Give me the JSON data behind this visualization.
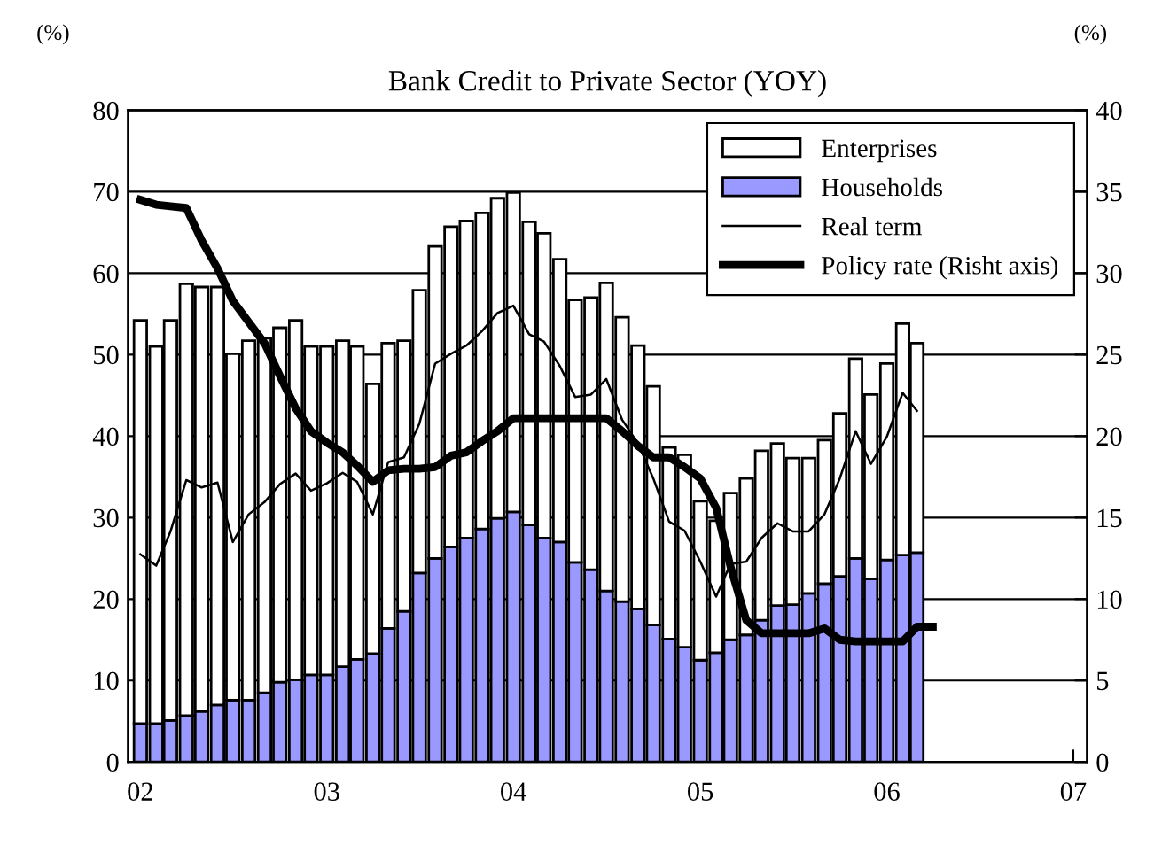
{
  "chart_data": {
    "type": "bar",
    "title": "Bank Credit to Private Sector (YOY)",
    "ylabel": "(%)",
    "y2label": "(%)",
    "stacked": true,
    "x": [
      "2002-01",
      "2002-02",
      "2002-03",
      "2002-04",
      "2002-05",
      "2002-06",
      "2002-07",
      "2002-08",
      "2002-09",
      "2002-10",
      "2002-11",
      "2002-12",
      "2003-01",
      "2003-02",
      "2003-03",
      "2003-04",
      "2003-05",
      "2003-06",
      "2003-07",
      "2003-08",
      "2003-09",
      "2003-10",
      "2003-11",
      "2003-12",
      "2004-01",
      "2004-02",
      "2004-03",
      "2004-04",
      "2004-05",
      "2004-06",
      "2004-07",
      "2004-08",
      "2004-09",
      "2004-10",
      "2004-11",
      "2004-12",
      "2005-01",
      "2005-02",
      "2005-03",
      "2005-04",
      "2005-05",
      "2005-06",
      "2005-07",
      "2005-08",
      "2005-09",
      "2005-10",
      "2005-11",
      "2005-12",
      "2006-01",
      "2006-02",
      "2006-03"
    ],
    "series": [
      {
        "name": "Households",
        "color": "#9999ff",
        "values": [
          4.7,
          4.7,
          5.1,
          5.7,
          6.2,
          7.0,
          7.6,
          7.6,
          8.5,
          9.8,
          10.1,
          10.7,
          10.7,
          11.7,
          12.6,
          13.3,
          16.4,
          18.5,
          23.2,
          25.0,
          26.4,
          27.5,
          28.6,
          29.9,
          30.7,
          29.1,
          27.5,
          27.0,
          24.5,
          23.6,
          21.0,
          19.7,
          18.8,
          16.8,
          15.1,
          14.1,
          12.5,
          13.4,
          15.0,
          15.6,
          17.4,
          19.2,
          19.3,
          20.7,
          21.9,
          22.8,
          25.0,
          22.5,
          24.8,
          25.4,
          25.7
        ]
      },
      {
        "name": "Enterprises",
        "color": "#ffffff",
        "values": [
          49.5,
          46.3,
          49.1,
          53.0,
          52.1,
          51.3,
          42.5,
          44.1,
          43.5,
          43.5,
          44.1,
          40.3,
          40.3,
          40.0,
          38.4,
          33.1,
          35.0,
          33.2,
          34.7,
          38.3,
          39.3,
          38.9,
          38.8,
          39.3,
          39.2,
          37.2,
          37.4,
          34.7,
          32.2,
          33.4,
          37.8,
          34.9,
          32.3,
          29.3,
          23.5,
          23.6,
          19.5,
          16.2,
          18.0,
          19.2,
          20.8,
          19.9,
          18.0,
          16.6,
          17.6,
          20.0,
          24.5,
          22.6,
          24.1,
          28.4,
          25.7
        ]
      },
      {
        "name": "Real term",
        "type": "line",
        "color": "#000000",
        "values": [
          25.5,
          24.1,
          28.3,
          34.6,
          33.7,
          34.3,
          27.0,
          30.4,
          31.9,
          34.1,
          35.4,
          33.3,
          34.2,
          35.5,
          34.4,
          30.4,
          36.8,
          37.4,
          41.5,
          48.9,
          50.1,
          51.1,
          52.9,
          55.1,
          56.0,
          52.5,
          51.6,
          48.6,
          44.8,
          45.1,
          47.0,
          42.0,
          39.1,
          34.8,
          29.5,
          28.4,
          24.6,
          20.3,
          24.3,
          24.6,
          27.5,
          29.3,
          28.3,
          28.3,
          30.4,
          34.8,
          40.6,
          36.6,
          39.9,
          45.3,
          43.1
        ]
      },
      {
        "name": "Policy rate (Risht axis)",
        "type": "line",
        "axis": "y2",
        "color": "#000000",
        "x": [
          "2002-01",
          "2002-02",
          "2002-03",
          "2002-04",
          "2002-05",
          "2002-06",
          "2002-07",
          "2002-08",
          "2002-09",
          "2002-10",
          "2002-11",
          "2002-12",
          "2003-01",
          "2003-02",
          "2003-03",
          "2003-04",
          "2003-05",
          "2003-06",
          "2003-07",
          "2003-08",
          "2003-09",
          "2003-10",
          "2003-11",
          "2003-12",
          "2004-01",
          "2004-02",
          "2004-03",
          "2004-04",
          "2004-05",
          "2004-06",
          "2004-07",
          "2004-08",
          "2004-09",
          "2004-10",
          "2004-11",
          "2004-12",
          "2005-01",
          "2005-02",
          "2005-03",
          "2005-04",
          "2005-05",
          "2005-06",
          "2005-07",
          "2005-08",
          "2005-09",
          "2005-10",
          "2005-11",
          "2005-12",
          "2006-01",
          "2006-02",
          "2006-03",
          "2006-04"
        ],
        "values": [
          34.5,
          34.2,
          34.1,
          34.0,
          32.0,
          30.3,
          28.3,
          27.0,
          25.7,
          23.7,
          21.7,
          20.3,
          19.6,
          19.0,
          18.2,
          17.2,
          17.9,
          18.0,
          18.0,
          18.1,
          18.8,
          19.0,
          19.7,
          20.3,
          21.1,
          21.1,
          21.1,
          21.1,
          21.1,
          21.1,
          21.1,
          20.3,
          19.4,
          18.7,
          18.7,
          18.1,
          17.4,
          15.6,
          12.0,
          8.7,
          7.9,
          7.9,
          7.9,
          7.9,
          8.2,
          7.5,
          7.4,
          7.4,
          7.4,
          7.4,
          8.3,
          8.3
        ]
      }
    ],
    "xlim": [
      "2001-12-08",
      "2007-01-28"
    ],
    "xticks": [
      {
        "value": "2002-01",
        "label": "02"
      },
      {
        "value": "2003-01",
        "label": "03"
      },
      {
        "value": "2004-01",
        "label": "04"
      },
      {
        "value": "2005-01",
        "label": "05"
      },
      {
        "value": "2006-01",
        "label": "06"
      },
      {
        "value": "2007-01",
        "label": "07"
      }
    ],
    "ylim": [
      0,
      80
    ],
    "yticks": [
      0,
      10,
      20,
      30,
      40,
      50,
      60,
      70,
      80
    ],
    "y2lim": [
      0,
      40
    ],
    "y2ticks": [
      0,
      5,
      10,
      15,
      20,
      25,
      30,
      35,
      40
    ],
    "grid": "y",
    "legend": "top right"
  }
}
